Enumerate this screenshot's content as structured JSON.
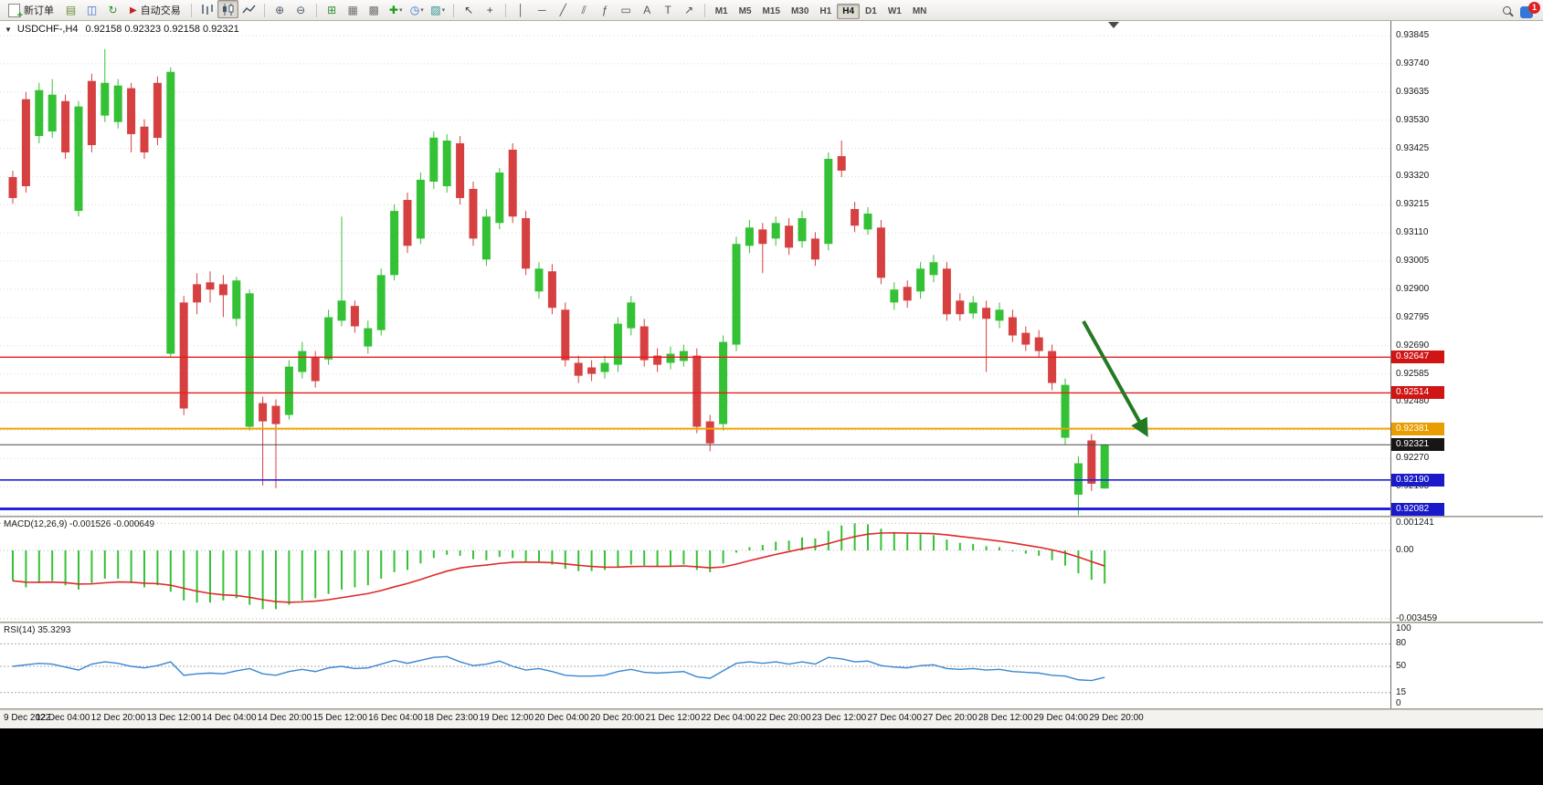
{
  "toolbar": {
    "new_order_label": "新订单",
    "autotrading_label": "自动交易",
    "small_icons": [
      {
        "name": "open-chart-icon",
        "glyph": "▤",
        "color": "#6a8f35"
      },
      {
        "name": "profiles-icon",
        "glyph": "◫",
        "color": "#3a6fd0"
      },
      {
        "name": "refresh-icon",
        "glyph": "↻",
        "color": "#2f8f2f"
      }
    ],
    "chart_modes": [
      {
        "name": "bars-mode-icon",
        "active": false
      },
      {
        "name": "candles-mode-icon",
        "active": true
      },
      {
        "name": "line-mode-icon",
        "active": false
      }
    ],
    "zoom_icons": [
      {
        "name": "zoom-in-icon",
        "glyph": "⊕",
        "color": "#4e5a66"
      },
      {
        "name": "zoom-out-icon",
        "glyph": "⊖",
        "color": "#4e5a66"
      }
    ],
    "window_icons": [
      {
        "name": "tile-windows-icon",
        "glyph": "⊞",
        "color": "#2f8f2f"
      },
      {
        "name": "auto-arrange-icon",
        "glyph": "▦",
        "color": "#6f6f6f"
      },
      {
        "name": "cascade-windows-icon",
        "glyph": "▩",
        "color": "#6f6f6f"
      }
    ],
    "dropdown_icons": [
      {
        "name": "indicators-button",
        "glyph": "✚",
        "color": "#18a018"
      },
      {
        "name": "periods-button",
        "glyph": "◷",
        "color": "#2a6fd0"
      },
      {
        "name": "templates-button",
        "glyph": "▨",
        "color": "#2a8f8f"
      }
    ],
    "cursor_icons": [
      {
        "name": "cursor-icon",
        "glyph": "↖",
        "color": "#444444"
      },
      {
        "name": "crosshair-icon",
        "glyph": "+",
        "color": "#444444"
      }
    ],
    "object_icons": [
      {
        "name": "vertical-line-icon",
        "glyph": "│",
        "color": "#555555"
      },
      {
        "name": "horizontal-line-icon",
        "glyph": "─",
        "color": "#555555"
      },
      {
        "name": "trendline-icon",
        "glyph": "╱",
        "color": "#555555"
      },
      {
        "name": "channel-icon",
        "glyph": "⫽",
        "color": "#555555"
      },
      {
        "name": "fibonacci-icon",
        "glyph": "ƒ",
        "color": "#555555"
      },
      {
        "name": "shapes-icon",
        "glyph": "▭",
        "color": "#555555"
      },
      {
        "name": "text-icon",
        "glyph": "A",
        "color": "#555555"
      },
      {
        "name": "label-icon",
        "glyph": "T",
        "color": "#555555"
      },
      {
        "name": "arrow-object-icon",
        "glyph": "↗",
        "color": "#555555"
      }
    ],
    "timeframes": [
      "M1",
      "M5",
      "M15",
      "M30",
      "H1",
      "H4",
      "D1",
      "W1",
      "MN"
    ],
    "active_timeframe": "H4",
    "notification_count": "1"
  },
  "chart": {
    "title_symbol": "USDCHF-,H4",
    "title_ohlc": "0.92158 0.92323 0.92158 0.92321"
  },
  "chart_data": {
    "type": "candlestick",
    "symbol": "USDCHF-",
    "timeframe": "H4",
    "current_ohlc": {
      "open": 0.92158,
      "high": 0.92323,
      "low": 0.92158,
      "close": 0.92321
    },
    "x_labels": [
      "9 Dec 2022",
      "12 Dec 04:00",
      "12 Dec 20:00",
      "13 Dec 12:00",
      "14 Dec 04:00",
      "14 Dec 20:00",
      "15 Dec 12:00",
      "16 Dec 04:00",
      "18 Dec 23:00",
      "19 Dec 12:00",
      "20 Dec 04:00",
      "20 Dec 20:00",
      "21 Dec 12:00",
      "22 Dec 04:00",
      "22 Dec 20:00",
      "23 Dec 12:00",
      "27 Dec 04:00",
      "27 Dec 20:00",
      "28 Dec 12:00",
      "29 Dec 04:00",
      "29 Dec 20:00"
    ],
    "price_axis": {
      "labels": [
        "0.93845",
        "0.93740",
        "0.93635",
        "0.93530",
        "0.93425",
        "0.93320",
        "0.93215",
        "0.93110",
        "0.93005",
        "0.92900",
        "0.92795",
        "0.92690",
        "0.92585",
        "0.92480",
        "0.92375",
        "0.92270",
        "0.92165",
        "0.92060"
      ],
      "min": 0.9206,
      "max": 0.93845
    },
    "candles": [
      [
        0.93318,
        0.93342,
        0.93219,
        0.9324
      ],
      [
        0.93608,
        0.93635,
        0.9326,
        0.93284
      ],
      [
        0.93471,
        0.93669,
        0.93444,
        0.93642
      ],
      [
        0.93488,
        0.93683,
        0.93464,
        0.93625
      ],
      [
        0.93601,
        0.93625,
        0.93386,
        0.9341
      ],
      [
        0.93192,
        0.93601,
        0.93172,
        0.93581
      ],
      [
        0.93676,
        0.93703,
        0.9341,
        0.93437
      ],
      [
        0.93547,
        0.93795,
        0.93523,
        0.93669
      ],
      [
        0.93523,
        0.93683,
        0.93499,
        0.93659
      ],
      [
        0.93649,
        0.93669,
        0.9341,
        0.93478
      ],
      [
        0.93506,
        0.93533,
        0.93386,
        0.9341
      ],
      [
        0.93669,
        0.93693,
        0.93437,
        0.93464
      ],
      [
        0.9266,
        0.93727,
        0.92646,
        0.9371
      ],
      [
        0.92851,
        0.92875,
        0.92432,
        0.92456
      ],
      [
        0.92919,
        0.9296,
        0.92807,
        0.92851
      ],
      [
        0.92926,
        0.92967,
        0.92851,
        0.92899
      ],
      [
        0.92919,
        0.92953,
        0.92797,
        0.92878
      ],
      [
        0.9279,
        0.92946,
        0.92762,
        0.92933
      ],
      [
        0.92388,
        0.92899,
        0.92374,
        0.92885
      ],
      [
        0.92476,
        0.925,
        0.92169,
        0.92408
      ],
      [
        0.92466,
        0.9249,
        0.92159,
        0.92398
      ],
      [
        0.92432,
        0.92636,
        0.92415,
        0.92612
      ],
      [
        0.92592,
        0.92704,
        0.92568,
        0.9267
      ],
      [
        0.92646,
        0.9267,
        0.92534,
        0.92558
      ],
      [
        0.92639,
        0.92824,
        0.92619,
        0.92796
      ],
      [
        0.92783,
        0.93171,
        0.92762,
        0.92858
      ],
      [
        0.92838,
        0.92858,
        0.92738,
        0.92762
      ],
      [
        0.92687,
        0.92783,
        0.9266,
        0.92755
      ],
      [
        0.92748,
        0.92977,
        0.92728,
        0.92953
      ],
      [
        0.92953,
        0.93216,
        0.92933,
        0.93192
      ],
      [
        0.93233,
        0.9326,
        0.93035,
        0.93062
      ],
      [
        0.93089,
        0.93335,
        0.93069,
        0.93308
      ],
      [
        0.93301,
        0.93488,
        0.93274,
        0.93465
      ],
      [
        0.93284,
        0.93478,
        0.9326,
        0.93454
      ],
      [
        0.93444,
        0.93471,
        0.93216,
        0.9324
      ],
      [
        0.93274,
        0.93301,
        0.93062,
        0.93089
      ],
      [
        0.93011,
        0.93199,
        0.92987,
        0.93171
      ],
      [
        0.93147,
        0.93352,
        0.93124,
        0.93335
      ],
      [
        0.9342,
        0.93444,
        0.93147,
        0.93171
      ],
      [
        0.93165,
        0.93192,
        0.92953,
        0.92977
      ],
      [
        0.92892,
        0.93001,
        0.92865,
        0.92977
      ],
      [
        0.92967,
        0.92994,
        0.92807,
        0.92831
      ],
      [
        0.92824,
        0.92851,
        0.92612,
        0.92636
      ],
      [
        0.92626,
        0.92653,
        0.92551,
        0.92578
      ],
      [
        0.92609,
        0.92636,
        0.92558,
        0.92585
      ],
      [
        0.92592,
        0.92653,
        0.92568,
        0.92626
      ],
      [
        0.92619,
        0.92796,
        0.92592,
        0.92772
      ],
      [
        0.92755,
        0.92875,
        0.92728,
        0.92851
      ],
      [
        0.92762,
        0.9279,
        0.92612,
        0.92636
      ],
      [
        0.92653,
        0.9268,
        0.92592,
        0.92619
      ],
      [
        0.92626,
        0.92687,
        0.92602,
        0.9266
      ],
      [
        0.92633,
        0.92694,
        0.92612,
        0.9267
      ],
      [
        0.92653,
        0.9268,
        0.92364,
        0.92388
      ],
      [
        0.92408,
        0.92432,
        0.92296,
        0.92326
      ],
      [
        0.92398,
        0.92728,
        0.92374,
        0.92704
      ],
      [
        0.92694,
        0.93096,
        0.9267,
        0.93069
      ],
      [
        0.93062,
        0.93158,
        0.93035,
        0.9313
      ],
      [
        0.93123,
        0.93147,
        0.9296,
        0.93069
      ],
      [
        0.93089,
        0.93171,
        0.93062,
        0.93147
      ],
      [
        0.93137,
        0.93165,
        0.93028,
        0.93055
      ],
      [
        0.93079,
        0.93192,
        0.93055,
        0.93165
      ],
      [
        0.93089,
        0.93113,
        0.92987,
        0.93011
      ],
      [
        0.93069,
        0.9341,
        0.93045,
        0.93386
      ],
      [
        0.93396,
        0.93454,
        0.93318,
        0.93342
      ],
      [
        0.93199,
        0.93226,
        0.93113,
        0.93137
      ],
      [
        0.93123,
        0.93206,
        0.93103,
        0.93182
      ],
      [
        0.9313,
        0.93158,
        0.92919,
        0.92943
      ],
      [
        0.92851,
        0.92926,
        0.92824,
        0.92899
      ],
      [
        0.92909,
        0.92933,
        0.92831,
        0.92858
      ],
      [
        0.92892,
        0.93001,
        0.92865,
        0.92977
      ],
      [
        0.92953,
        0.93028,
        0.92926,
        0.93001
      ],
      [
        0.92977,
        0.93001,
        0.92783,
        0.92807
      ],
      [
        0.92858,
        0.92885,
        0.92783,
        0.92807
      ],
      [
        0.9281,
        0.92875,
        0.9279,
        0.92851
      ],
      [
        0.92831,
        0.92858,
        0.92592,
        0.9279
      ],
      [
        0.92783,
        0.92851,
        0.92755,
        0.92824
      ],
      [
        0.92796,
        0.92824,
        0.92704,
        0.92728
      ],
      [
        0.92738,
        0.92762,
        0.9267,
        0.92694
      ],
      [
        0.92721,
        0.92748,
        0.92646,
        0.9267
      ],
      [
        0.9267,
        0.92694,
        0.92524,
        0.92551
      ],
      [
        0.92347,
        0.92568,
        0.9232,
        0.92544
      ],
      [
        0.92135,
        0.92278,
        0.92058,
        0.92252
      ],
      [
        0.92337,
        0.92361,
        0.92149,
        0.92176
      ],
      [
        0.92158,
        0.92323,
        0.92158,
        0.92321
      ]
    ],
    "horizontal_lines": [
      {
        "label": "0.92647",
        "price": 0.92647,
        "color": "#e81c1c",
        "badge": "#d01515",
        "width": 1.4
      },
      {
        "label": "0.92514",
        "price": 0.92514,
        "color": "#e81c1c",
        "badge": "#d01515",
        "width": 1.4
      },
      {
        "label": "0.92381",
        "price": 0.92381,
        "color": "#f0a400",
        "badge": "#e89e00",
        "width": 2
      },
      {
        "label": "0.92321",
        "price": 0.92321,
        "color": "#4a4a4a",
        "badge": "#161616",
        "width": 1
      },
      {
        "label": "0.92190",
        "price": 0.9219,
        "color": "#2222dd",
        "badge": "#1a1ac9",
        "width": 1.6
      },
      {
        "label": "0.92082",
        "price": 0.92082,
        "color": "#2222dd",
        "badge": "#1a1ac9",
        "width": 3
      }
    ],
    "annotation_arrow": {
      "color": "#237a23",
      "direction": "down-right"
    },
    "indicators": {
      "macd": {
        "display": "MACD(12,26,9) -0.001526 -0.000649",
        "params": "12,26,9",
        "value": -0.001526,
        "signal": -0.000649,
        "axis_labels": [
          "0.001241",
          "0.00",
          "-0.003459"
        ],
        "histogram_color": "#35c135",
        "signal_color": "#e02828",
        "histogram": [
          -0.0014,
          -0.0017,
          -0.0015,
          -0.0014,
          -0.0016,
          -0.0018,
          -0.0015,
          -0.0013,
          -0.0013,
          -0.0015,
          -0.0017,
          -0.0016,
          -0.0019,
          -0.0023,
          -0.0024,
          -0.0024,
          -0.0023,
          -0.0022,
          -0.0025,
          -0.0027,
          -0.0027,
          -0.0025,
          -0.0023,
          -0.0022,
          -0.002,
          -0.0018,
          -0.0017,
          -0.0016,
          -0.0013,
          -0.001,
          -0.0009,
          -0.0006,
          -0.00035,
          -0.0002,
          -0.00025,
          -0.0004,
          -0.00045,
          -0.0003,
          -0.00035,
          -0.0005,
          -0.00055,
          -0.00065,
          -0.00085,
          -0.00095,
          -0.00095,
          -0.0009,
          -0.00075,
          -0.00065,
          -0.0007,
          -0.00075,
          -0.0007,
          -0.00065,
          -0.0009,
          -0.001,
          -0.0006,
          -0.0001,
          0.00015,
          0.00025,
          0.0004,
          0.00045,
          0.0006,
          0.00055,
          0.0009,
          0.00115,
          0.001241,
          0.0012,
          0.001,
          0.00085,
          0.00075,
          0.00075,
          0.0007,
          0.0005,
          0.00035,
          0.0003,
          0.0002,
          0.00015,
          0.0,
          -0.00015,
          -0.00025,
          -0.00045,
          -0.0007,
          -0.00105,
          -0.00135,
          -0.001526
        ]
      },
      "rsi": {
        "display": "RSI(14) 35.3293",
        "period": 14,
        "value": 35.3293,
        "axis_labels": [
          "100",
          "80",
          "50",
          "15",
          "0"
        ],
        "levels": [
          80,
          50,
          15
        ],
        "line_color": "#3a87cf",
        "values": [
          50,
          52,
          54,
          53,
          49,
          45,
          53,
          56,
          54,
          50,
          48,
          51,
          56,
          38,
          40,
          41,
          40,
          44,
          47,
          40,
          38,
          43,
          46,
          43,
          48,
          50,
          47,
          48,
          53,
          58,
          54,
          58,
          62,
          63,
          56,
          51,
          53,
          57,
          50,
          45,
          47,
          43,
          38,
          37,
          37,
          38,
          43,
          46,
          42,
          41,
          42,
          43,
          36,
          34,
          44,
          54,
          56,
          54,
          56,
          53,
          56,
          53,
          62,
          60,
          56,
          57,
          51,
          49,
          48,
          51,
          52,
          47,
          46,
          47,
          45,
          46,
          43,
          42,
          41,
          38,
          37,
          32,
          31,
          35.3
        ]
      }
    },
    "colors": {
      "up": "#35c135",
      "down": "#d64040",
      "background": "#ffffff"
    }
  }
}
